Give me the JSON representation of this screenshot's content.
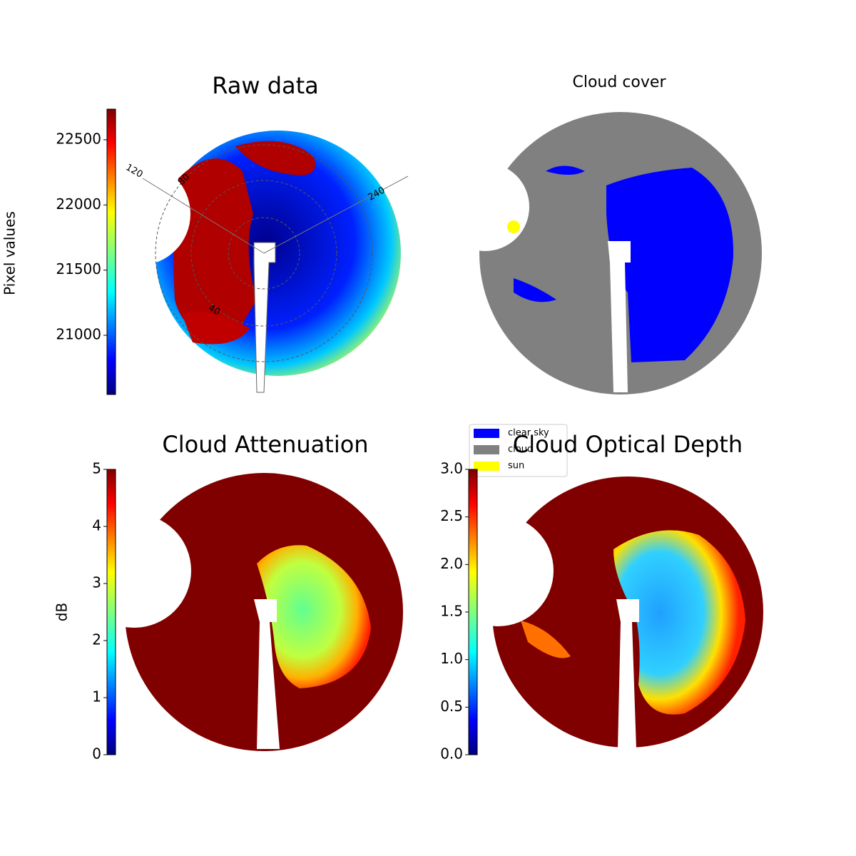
{
  "chart_data": [
    {
      "type": "heatmap",
      "title": "Raw data",
      "colorbar_label": "Pixel values",
      "colormap": "jet",
      "clim": [
        20546,
        22735
      ],
      "ticks": [
        21000,
        21500,
        22000,
        22500
      ],
      "polar_labels": [
        "120",
        "240",
        "80",
        "40"
      ]
    },
    {
      "type": "categorical",
      "title": "Cloud cover",
      "legend": [
        {
          "name": "clear sky",
          "color": "#0000ff"
        },
        {
          "name": "cloud",
          "color": "#808080"
        },
        {
          "name": "sun",
          "color": "#ffff00"
        }
      ]
    },
    {
      "type": "heatmap",
      "title": "Cloud Attenuation",
      "colorbar_label": "dB",
      "colormap": "jet",
      "clim": [
        0,
        5
      ],
      "ticks": [
        0,
        1,
        2,
        3,
        4,
        5
      ]
    },
    {
      "type": "heatmap",
      "title": "Cloud Optical Depth",
      "colormap": "jet",
      "clim": [
        0,
        3
      ],
      "ticks": [
        {
          "value": 0,
          "label": "0.0"
        },
        0.5,
        {
          "value": 1,
          "label": "1.0"
        },
        1.5,
        {
          "value": 2,
          "label": "2.0"
        },
        2.5,
        {
          "value": 3,
          "label": "3.0"
        }
      ]
    }
  ]
}
